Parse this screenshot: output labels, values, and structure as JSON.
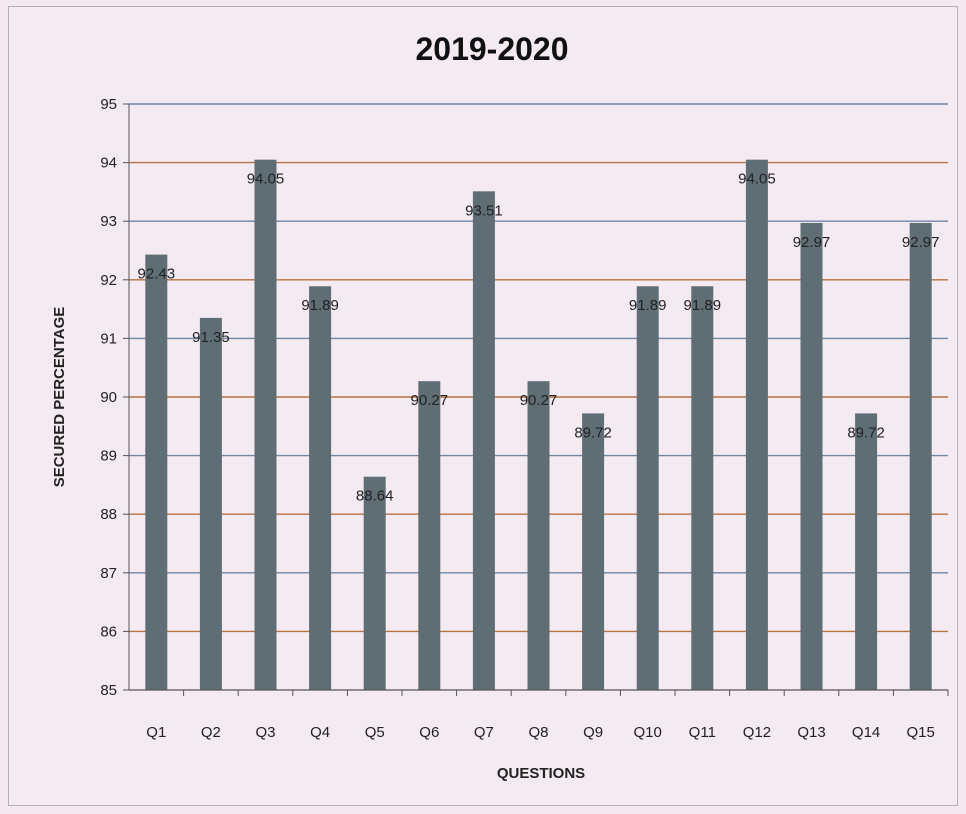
{
  "chart_data": {
    "type": "bar",
    "title": "2019-2020",
    "xlabel": "QUESTIONS",
    "ylabel": "SECURED PERCENTAGE",
    "categories": [
      "Q1",
      "Q2",
      "Q3",
      "Q4",
      "Q5",
      "Q6",
      "Q7",
      "Q8",
      "Q9",
      "Q10",
      "Q11",
      "Q12",
      "Q13",
      "Q14",
      "Q15"
    ],
    "values": [
      92.43,
      91.35,
      94.05,
      91.89,
      88.64,
      90.27,
      93.51,
      90.27,
      89.72,
      91.89,
      91.89,
      94.05,
      92.97,
      89.72,
      92.97
    ],
    "data_labels": [
      "92.43",
      "91.35",
      "94.05",
      "91.89",
      "88.64",
      "90.27",
      "93.51",
      "90.27",
      "89.72",
      "91.89",
      "91.89",
      "94.05",
      "92.97",
      "89.72",
      "92.97"
    ],
    "ylim": [
      85,
      95
    ],
    "yticks": [
      "85",
      "86",
      "87",
      "88",
      "89",
      "90",
      "91",
      "92",
      "93",
      "94",
      "95"
    ],
    "grid": true,
    "legend": "none",
    "colors": {
      "bar": "#5f6e74",
      "grid_a": "#6f86a4",
      "grid_b": "#b8733f",
      "axis": "#555555"
    }
  }
}
